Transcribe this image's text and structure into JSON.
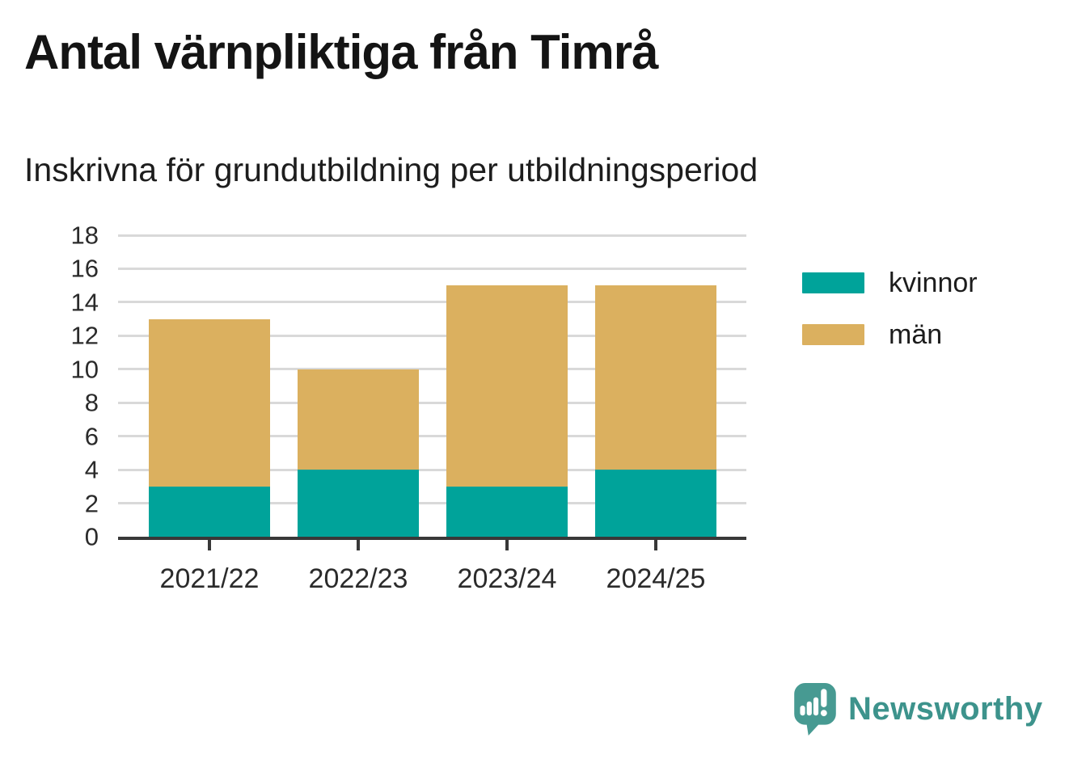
{
  "chart": {
    "title": "Antal värnpliktiga från Timrå",
    "subtitle": "Inskrivna för grundutbildning per utbildningsperiod"
  },
  "chart_data": {
    "type": "bar",
    "stacked": true,
    "categories": [
      "2021/22",
      "2022/23",
      "2023/24",
      "2024/25"
    ],
    "series": [
      {
        "name": "kvinnor",
        "color": "#00a39a",
        "values": [
          3,
          4,
          3,
          4
        ]
      },
      {
        "name": "män",
        "color": "#dbb05f",
        "values": [
          10,
          6,
          12,
          11
        ]
      }
    ],
    "yticks": [
      0,
      2,
      4,
      6,
      8,
      10,
      12,
      14,
      16,
      18
    ],
    "ylim": [
      0,
      18
    ],
    "grid": "horizontal",
    "legend_position": "right",
    "colors": {
      "axis_line": "#383838",
      "gridline": "#d9d9d9",
      "tick_label": "#2b2b2b"
    }
  },
  "branding": {
    "name": "Newsworthy",
    "logo_color": "#479a92",
    "text_color": "#3d938c"
  }
}
